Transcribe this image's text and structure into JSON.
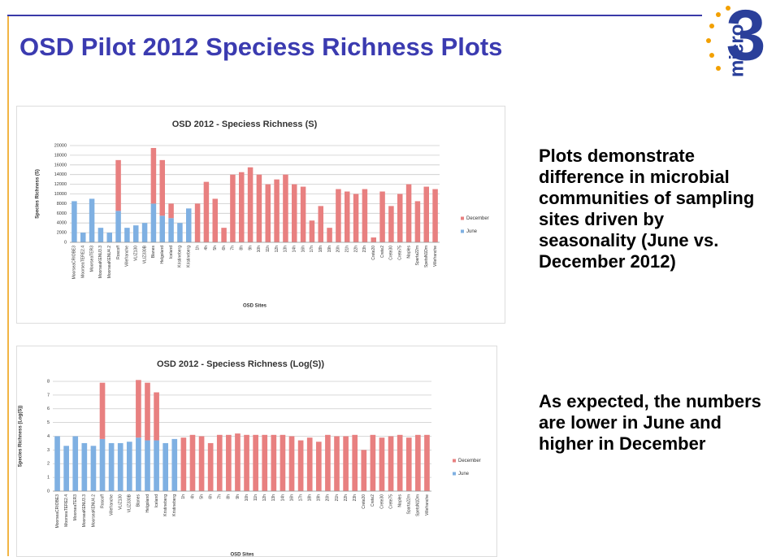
{
  "title": "OSD Pilot 2012 Speciess Richness Plots",
  "logo": {
    "text": "micro",
    "number": "3"
  },
  "notes": [
    "Plots demonstrate difference in microbial communities of sampling sites driven by seasonality (June vs. December 2012)",
    "As expected, the numbers are lower in June and higher in December"
  ],
  "chart_data": [
    {
      "type": "bar",
      "stacked": true,
      "title": "OSD 2012 - Speciess Richness (S)",
      "x_label": "OSD Sites",
      "y_label": "Species Richness (S)",
      "categories": [
        "MoorseaCRIOBE3",
        "MoorseaTERE2.4",
        "MoorseaTER3",
        "MoorseaKENU3.3",
        "MoorseaKENU4.2",
        "Roscoff",
        "Villefranche",
        "VLIZ130",
        "VLIZ330B",
        "Blanes",
        "Helgoland",
        "Iceland",
        "Kristineberg",
        "Kristineberg",
        "1h",
        "4h",
        "5h",
        "6h",
        "7h",
        "8h",
        "9h",
        "10h",
        "11h",
        "12h",
        "13h",
        "14h",
        "16h",
        "17h",
        "18h",
        "19h",
        "20h",
        "21h",
        "22h",
        "23h",
        "Crete20",
        "Crete2",
        "Crete30",
        "Crete75",
        "Naples",
        "Sparta22m",
        "SpetsN1Dm",
        "Villefranche"
      ],
      "series": [
        {
          "name": "June",
          "color": "#7fb0e2",
          "values": [
            8500,
            2000,
            9000,
            3000,
            2000,
            6500,
            3000,
            3500,
            4000,
            8000,
            5500,
            5000,
            4000,
            7000,
            null,
            null,
            null,
            null,
            null,
            null,
            null,
            null,
            null,
            null,
            null,
            null,
            null,
            null,
            null,
            null,
            null,
            null,
            null,
            null,
            null,
            null,
            null,
            null,
            null,
            null,
            null,
            null
          ]
        },
        {
          "name": "December",
          "color": "#e88080",
          "values": [
            null,
            null,
            null,
            null,
            null,
            10500,
            null,
            null,
            null,
            11500,
            11500,
            3000,
            null,
            null,
            8000,
            12500,
            9000,
            3000,
            14000,
            14500,
            15500,
            14000,
            12000,
            13000,
            14000,
            12000,
            11500,
            4500,
            7500,
            3000,
            11000,
            10500,
            10000,
            11000,
            1000,
            10500,
            7500,
            10000,
            12000,
            8500,
            11500,
            11000
          ]
        }
      ],
      "ylim": [
        0,
        20000
      ],
      "yticks": [
        0,
        2000,
        4000,
        6000,
        8000,
        10000,
        12000,
        14000,
        16000,
        18000,
        20000
      ],
      "grid": true,
      "legend": "right"
    },
    {
      "type": "bar",
      "stacked": true,
      "title": "OSD 2012 - Speciess Richness (Log(S))",
      "x_label": "OSD Sites",
      "y_label": "Species Richness (Log(S))",
      "categories": [
        "MoorseaCRIOBE3",
        "MoorseaTERE2.4",
        "MoorseaTER3",
        "MoorseaKENU3.3",
        "MoorseaKENU4.2",
        "Roscoff",
        "Villefranche",
        "VLIZ130",
        "VLIZ330B",
        "Blanes",
        "Helgoland",
        "Iceland",
        "Kristineberg",
        "Kristineberg",
        "1h",
        "4h",
        "5h",
        "6h",
        "7h",
        "8h",
        "9h",
        "10h",
        "11h",
        "12h",
        "13h",
        "14h",
        "16h",
        "17h",
        "18h",
        "19h",
        "20h",
        "21h",
        "22h",
        "23h",
        "Crete20",
        "Crete2",
        "Crete30",
        "Crete75",
        "Naples",
        "Sparta22m",
        "SpetsN1Dm",
        "Villefranche"
      ],
      "series": [
        {
          "name": "June",
          "color": "#7fb0e2",
          "values": [
            4,
            3.3,
            4,
            3.5,
            3.3,
            3.8,
            3.5,
            3.5,
            3.6,
            3.9,
            3.7,
            3.7,
            3.5,
            3.8,
            null,
            null,
            null,
            null,
            null,
            null,
            null,
            null,
            null,
            null,
            null,
            null,
            null,
            null,
            null,
            null,
            null,
            null,
            null,
            null,
            null,
            null,
            null,
            null,
            null,
            null,
            null,
            null
          ]
        },
        {
          "name": "December",
          "color": "#e88080",
          "values": [
            null,
            null,
            null,
            null,
            null,
            4.1,
            null,
            null,
            null,
            4.2,
            4.2,
            3.5,
            null,
            null,
            3.9,
            4.1,
            4,
            3.5,
            4.1,
            4.1,
            4.2,
            4.1,
            4.1,
            4.1,
            4.1,
            4.1,
            4,
            3.7,
            3.9,
            3.6,
            4.1,
            4,
            4,
            4.1,
            3,
            4.1,
            3.9,
            4,
            4.1,
            3.9,
            4.1,
            4.1
          ]
        }
      ],
      "ylim": [
        0,
        8
      ],
      "yticks": [
        0,
        1,
        2,
        3,
        4,
        5,
        6,
        7,
        8
      ],
      "grid": true,
      "legend": "right"
    }
  ]
}
